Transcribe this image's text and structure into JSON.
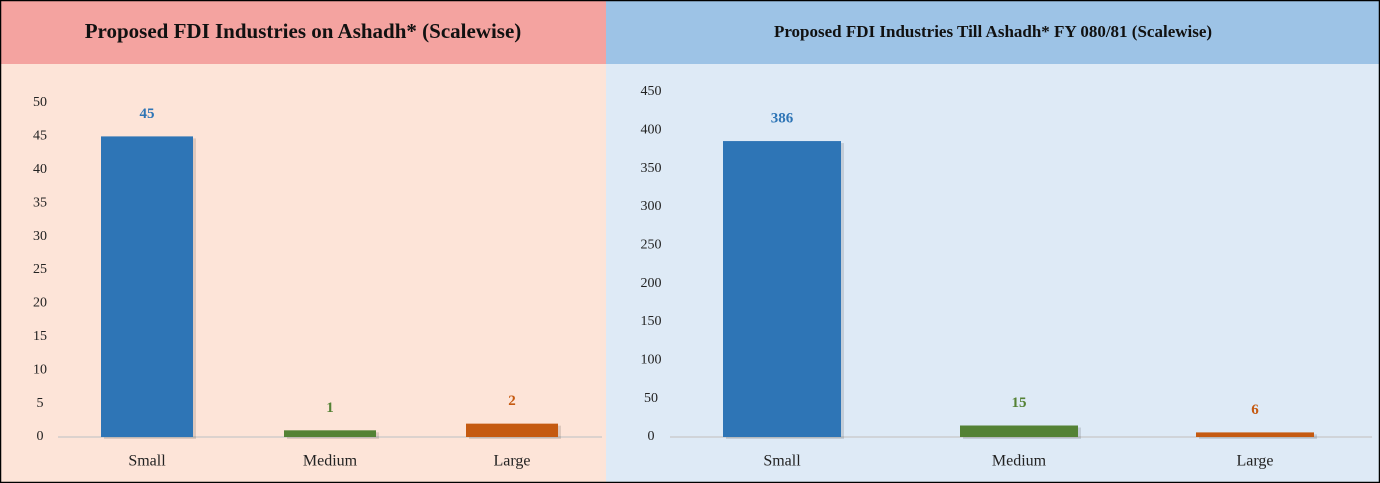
{
  "chart_data": [
    {
      "type": "bar",
      "title": "Proposed FDI Industries on Ashadh* (Scalewise)",
      "categories": [
        "Small",
        "Medium",
        "Large"
      ],
      "values": [
        45,
        1,
        2
      ],
      "colors": [
        "#2e75b6",
        "#548235",
        "#c55a11"
      ],
      "ylim": [
        0,
        50
      ],
      "yticks": [
        0,
        5,
        10,
        15,
        20,
        25,
        30,
        35,
        40,
        45,
        50
      ]
    },
    {
      "type": "bar",
      "title": "Proposed FDI Industries Till Ashadh* FY 080/81 (Scalewise)",
      "categories": [
        "Small",
        "Medium",
        "Large"
      ],
      "values": [
        386,
        15,
        6
      ],
      "colors": [
        "#2e75b6",
        "#548235",
        "#c55a11"
      ],
      "ylim": [
        0,
        450
      ],
      "yticks": [
        0,
        50,
        100,
        150,
        200,
        250,
        300,
        350,
        400,
        450
      ]
    }
  ]
}
